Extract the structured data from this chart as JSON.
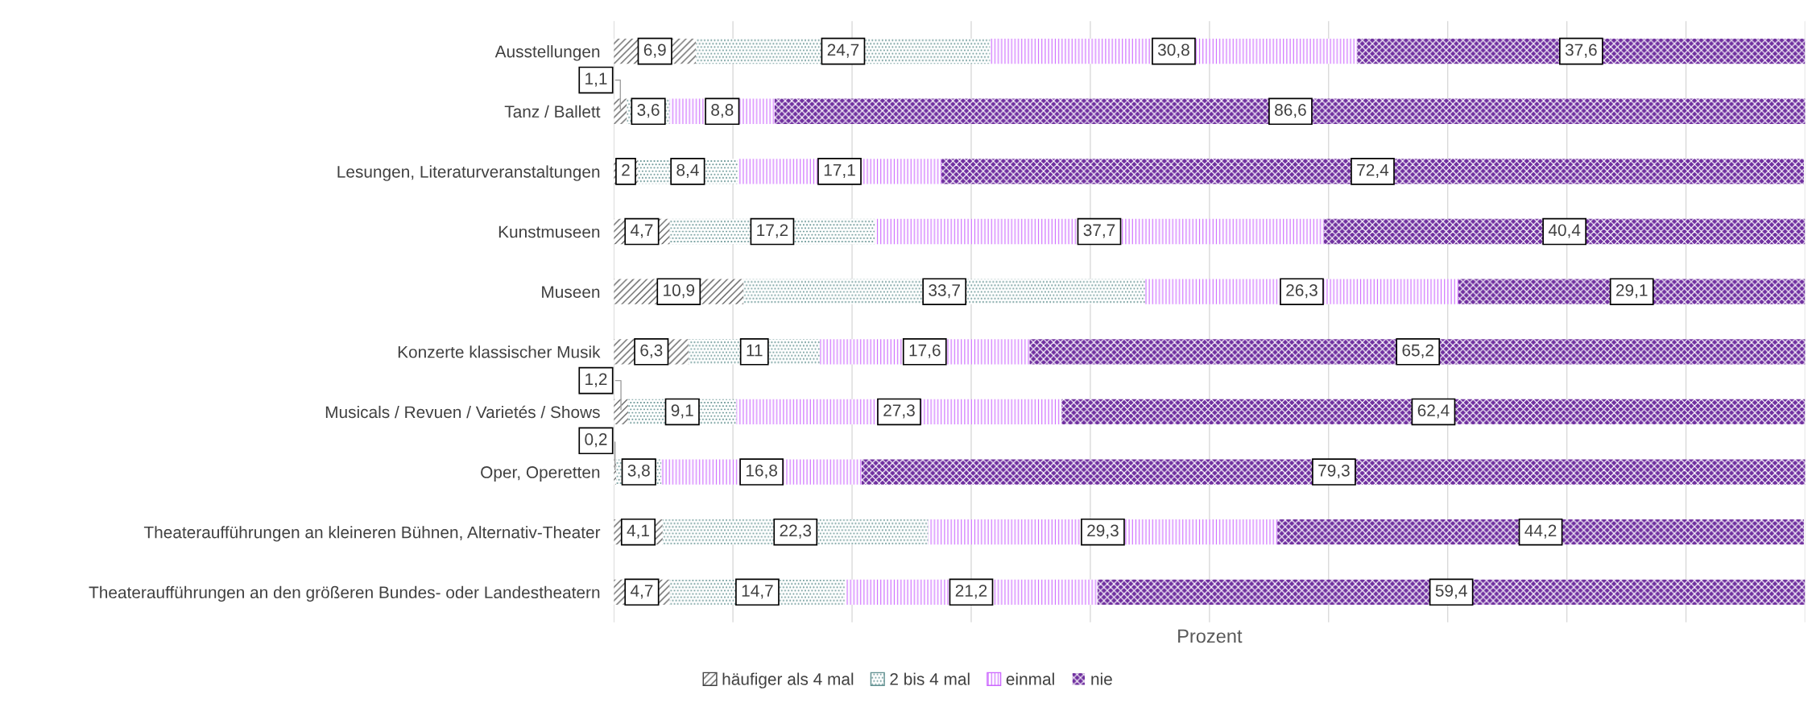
{
  "chart_data": {
    "type": "bar",
    "orientation": "horizontal",
    "stacked": true,
    "xlabel": "Prozent",
    "categories": [
      "Ausstellungen",
      "Tanz / Ballett",
      "Lesungen, Literaturveranstaltungen",
      "Kunstmuseen",
      "Museen",
      "Konzerte klassischer Musik",
      "Musicals / Revuen / Varietés / Shows",
      "Oper, Operetten",
      "Theateraufführungen an kleineren Bühnen, Alternativ-Theater",
      "Theateraufführungen an den größeren Bundes- oder Landestheatern"
    ],
    "series": [
      {
        "name": "häufiger als 4 mal",
        "color": "#404040",
        "values": [
          6.9,
          1.1,
          2,
          4.7,
          10.9,
          6.3,
          1.2,
          0.2,
          4.1,
          4.7
        ],
        "value_labels": [
          "6,9",
          "1,1",
          "2",
          "4,7",
          "10,9",
          "6,3",
          "1,2",
          "0,2",
          "4,1",
          "4,7"
        ]
      },
      {
        "name": "2 bis 4 mal",
        "color": "#5f8f8f",
        "values": [
          24.7,
          3.6,
          8.4,
          17.2,
          33.7,
          11,
          9.1,
          3.8,
          22.3,
          14.7
        ],
        "value_labels": [
          "24,7",
          "3,6",
          "8,4",
          "17,2",
          "33,7",
          "11",
          "9,1",
          "3,8",
          "22,3",
          "14,7"
        ]
      },
      {
        "name": "einmal",
        "color": "#cc66ff",
        "values": [
          30.8,
          8.8,
          17.1,
          37.7,
          26.3,
          17.6,
          27.3,
          16.8,
          29.3,
          21.2
        ],
        "value_labels": [
          "30,8",
          "8,8",
          "17,1",
          "37,7",
          "26,3",
          "17,6",
          "27,3",
          "16,8",
          "29,3",
          "21,2"
        ]
      },
      {
        "name": "nie",
        "color": "#7030a0",
        "values": [
          37.6,
          86.6,
          72.4,
          40.4,
          29.1,
          65.2,
          62.4,
          79.3,
          44.2,
          59.4
        ],
        "value_labels": [
          "37,6",
          "86,6",
          "72,4",
          "40,4",
          "29,1",
          "65,2",
          "62,4",
          "79,3",
          "44,2",
          "59,4"
        ]
      }
    ],
    "xlim": [
      0,
      100
    ],
    "xticks": [
      {
        "value": 0,
        "label": null
      },
      {
        "value": 10,
        "label": null
      },
      {
        "value": 20,
        "label": null
      },
      {
        "value": 30,
        "label": null
      },
      {
        "value": 40,
        "label": null
      },
      {
        "value": 50,
        "label": null
      },
      {
        "value": 60,
        "label": null
      },
      {
        "value": 70,
        "label": null
      },
      {
        "value": 80,
        "label": null
      },
      {
        "value": 90,
        "label": null
      },
      {
        "value": 100,
        "label": null
      }
    ],
    "tick_labels": "y",
    "grid": "x",
    "legend": "bottom"
  }
}
